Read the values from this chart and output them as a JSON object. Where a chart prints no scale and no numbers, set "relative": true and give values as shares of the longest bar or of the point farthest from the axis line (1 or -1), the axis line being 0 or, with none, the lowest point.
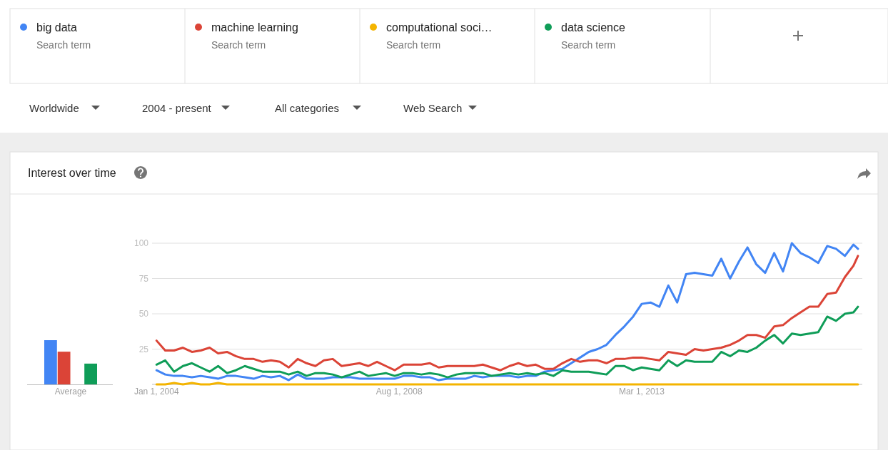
{
  "chart_data": [
    {
      "type": "line",
      "title": "Interest over time",
      "legend": "top",
      "grid": "y",
      "annotations": [
        "Worldwide",
        "2004 - present",
        "All categories",
        "Web Search",
        "Search term",
        "Search term",
        "Search term",
        "Search term"
      ],
      "x": [
        "2004-01",
        "2004-03",
        "2004-05",
        "2004-07",
        "2004-09",
        "2004-11",
        "2005-01",
        "2005-03",
        "2005-05",
        "2005-07",
        "2005-09",
        "2005-11",
        "2006-01",
        "2006-03",
        "2006-05",
        "2006-07",
        "2006-09",
        "2006-11",
        "2007-01",
        "2007-03",
        "2007-05",
        "2007-07",
        "2007-09",
        "2007-11",
        "2008-01",
        "2008-03",
        "2008-05",
        "2008-07",
        "2008-09",
        "2008-11",
        "2009-01",
        "2009-03",
        "2009-05",
        "2009-07",
        "2009-09",
        "2009-11",
        "2010-01",
        "2010-03",
        "2010-05",
        "2010-07",
        "2010-09",
        "2010-11",
        "2011-01",
        "2011-03",
        "2011-05",
        "2011-07",
        "2011-09",
        "2011-11",
        "2012-01",
        "2012-03",
        "2012-05",
        "2012-07",
        "2012-09",
        "2012-11",
        "2013-01",
        "2013-03",
        "2013-05",
        "2013-07",
        "2013-09",
        "2013-11",
        "2014-01",
        "2014-03",
        "2014-05",
        "2014-07",
        "2014-09",
        "2014-11",
        "2015-01",
        "2015-03",
        "2015-05",
        "2015-07",
        "2015-09",
        "2015-11",
        "2016-01",
        "2016-03",
        "2016-05",
        "2016-07",
        "2016-09",
        "2016-11",
        "2017-01",
        "2017-03",
        "2017-04"
      ],
      "xlim": [
        "2003-12",
        "2017-05"
      ],
      "xticks": [
        {
          "value": "2004-01-01",
          "label": "Jan 1, 2004"
        },
        {
          "value": "2008-08-01",
          "label": "Aug 1, 2008"
        },
        {
          "value": "2013-03-01",
          "label": "Mar 1, 2013"
        }
      ],
      "ylim": [
        0,
        100
      ],
      "yticks": [
        25,
        50,
        75,
        100
      ],
      "series": [
        {
          "name": "big data",
          "color": "#4285f4",
          "values": [
            10,
            7,
            6,
            6,
            5,
            6,
            5,
            4,
            6,
            6,
            5,
            4,
            6,
            5,
            6,
            3,
            7,
            4,
            4,
            4,
            5,
            5,
            5,
            4,
            4,
            4,
            4,
            4,
            6,
            6,
            5,
            5,
            3,
            4,
            4,
            4,
            6,
            5,
            6,
            6,
            6,
            5,
            6,
            6,
            9,
            10,
            11,
            15,
            19,
            23,
            25,
            28,
            35,
            41,
            48,
            57,
            58,
            55,
            70,
            58,
            78,
            79,
            78,
            77,
            89,
            75,
            87,
            97,
            85,
            79,
            93,
            80,
            100,
            93,
            90,
            86,
            98,
            96,
            91,
            99,
            96
          ]
        },
        {
          "name": "machine learning",
          "color": "#db4437",
          "values": [
            31,
            24,
            24,
            26,
            23,
            24,
            26,
            22,
            23,
            20,
            18,
            18,
            16,
            17,
            16,
            12,
            18,
            15,
            13,
            17,
            18,
            13,
            14,
            15,
            13,
            16,
            13,
            10,
            14,
            14,
            14,
            15,
            12,
            13,
            13,
            13,
            13,
            14,
            12,
            10,
            13,
            15,
            13,
            14,
            11,
            11,
            15,
            18,
            16,
            17,
            17,
            15,
            18,
            18,
            19,
            19,
            18,
            17,
            23,
            22,
            21,
            25,
            24,
            25,
            26,
            28,
            31,
            35,
            35,
            33,
            41,
            42,
            47,
            51,
            55,
            55,
            64,
            65,
            76,
            84,
            91
          ]
        },
        {
          "name": "computational soci…",
          "color": "#f4b400",
          "values": [
            0,
            0,
            1,
            0,
            1,
            0,
            0,
            1,
            0,
            0,
            0,
            0,
            0,
            0,
            0,
            0,
            0,
            0,
            0,
            0,
            0,
            0,
            0,
            0,
            0,
            0,
            0,
            0,
            0,
            0,
            0,
            0,
            0,
            0,
            0,
            0,
            0,
            0,
            0,
            0,
            0,
            0,
            0,
            0,
            0,
            0,
            0,
            0,
            0,
            0,
            0,
            0,
            0,
            0,
            0,
            0,
            0,
            0,
            0,
            0,
            0,
            0,
            0,
            0,
            0,
            0,
            0,
            0,
            0,
            0,
            0,
            0,
            0,
            0,
            0,
            0,
            0,
            0,
            0,
            0,
            0
          ]
        },
        {
          "name": "data science",
          "color": "#0f9d58",
          "values": [
            14,
            17,
            9,
            13,
            15,
            12,
            9,
            13,
            8,
            10,
            13,
            11,
            9,
            9,
            9,
            7,
            9,
            6,
            8,
            8,
            7,
            5,
            7,
            9,
            6,
            7,
            8,
            6,
            8,
            8,
            7,
            8,
            7,
            5,
            7,
            8,
            8,
            8,
            6,
            7,
            8,
            7,
            8,
            7,
            8,
            6,
            10,
            9,
            9,
            9,
            8,
            7,
            13,
            13,
            10,
            12,
            11,
            10,
            17,
            13,
            17,
            16,
            16,
            16,
            23,
            20,
            24,
            23,
            26,
            31,
            35,
            29,
            36,
            35,
            36,
            37,
            48,
            45,
            50,
            51,
            55
          ]
        }
      ]
    },
    {
      "type": "bar",
      "relative": true,
      "categories": [
        "Average"
      ],
      "series": [
        {
          "color": "#4285f4",
          "values": [
            1
          ]
        },
        {
          "color": "#db4437",
          "values": [
            0.74
          ]
        },
        {
          "color": "#f4b400",
          "values": [
            0
          ]
        },
        {
          "color": "#0f9d58",
          "values": [
            0.47
          ]
        }
      ]
    }
  ]
}
